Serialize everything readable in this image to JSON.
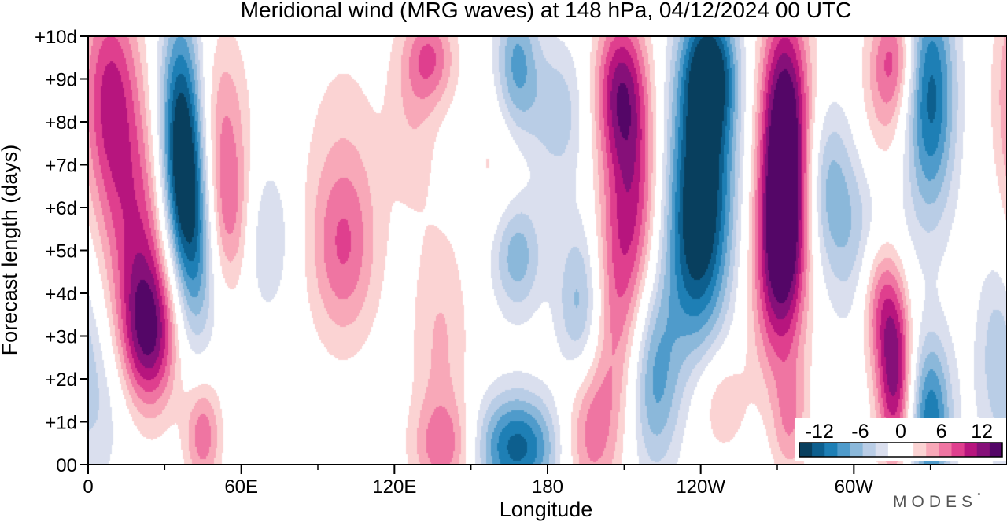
{
  "chart_data": {
    "type": "heatmap",
    "title": "Meridional wind (MRG waves) at  148 hPa,  04/12/2024  00 UTC",
    "xlabel": "Longitude",
    "ylabel": "Forecast length (days)",
    "x_ticks": [
      "0",
      "60E",
      "120E",
      "180",
      "120W",
      "60W"
    ],
    "x_tick_lon": [
      0,
      60,
      120,
      180,
      240,
      300
    ],
    "x_minor_lon": [
      30,
      90,
      150,
      210,
      270,
      330
    ],
    "xlim": [
      0,
      360
    ],
    "y_ticks": [
      "00",
      "+1d",
      "+2d",
      "+3d",
      "+4d",
      "+5d",
      "+6d",
      "+7d",
      "+8d",
      "+9d",
      "+10d"
    ],
    "ylim": [
      0,
      10
    ],
    "colorbar": {
      "tick_labels": [
        "-12",
        "-6",
        "0",
        "6",
        "12"
      ],
      "tick_values": [
        -12,
        -6,
        0,
        6,
        12
      ],
      "range": [
        -15,
        15
      ],
      "colors": [
        "#083f5e",
        "#0d5f8e",
        "#1e7fb5",
        "#4f9bcb",
        "#8bb8da",
        "#b9cde6",
        "#dadfee",
        "#ffffff",
        "#ffffff",
        "#fbd3d3",
        "#f8a8b8",
        "#ef75a2",
        "#df3f8e",
        "#b7157e",
        "#861079",
        "#540667"
      ]
    },
    "features": [
      {
        "lon": 4,
        "day": 1.5,
        "amp": -3.5,
        "wx": 10,
        "wy": 1.5
      },
      {
        "lon": 8,
        "day": 8.8,
        "amp": 8,
        "wx": 8,
        "wy": 1.8
      },
      {
        "lon": 14,
        "day": 6.5,
        "amp": 5,
        "wx": 9,
        "wy": 2.2
      },
      {
        "lon": 22,
        "day": 4.5,
        "amp": 6,
        "wx": 8,
        "wy": 2
      },
      {
        "lon": 24,
        "day": 3.0,
        "amp": 10,
        "wx": 8,
        "wy": 1.2
      },
      {
        "lon": 36,
        "day": 8.5,
        "amp": -10,
        "wx": 6,
        "wy": 1.8
      },
      {
        "lon": 38,
        "day": 6.5,
        "amp": -11,
        "wx": 6,
        "wy": 1.5
      },
      {
        "lon": 42,
        "day": 4.5,
        "amp": -7,
        "wx": 6,
        "wy": 1.5
      },
      {
        "lon": 45,
        "day": 0.7,
        "amp": 7,
        "wx": 5,
        "wy": 0.9
      },
      {
        "lon": 53,
        "day": 7.5,
        "amp": 6,
        "wx": 7,
        "wy": 1.8
      },
      {
        "lon": 56,
        "day": 5.6,
        "amp": 4,
        "wx": 6,
        "wy": 1.2
      },
      {
        "lon": 70,
        "day": 5.3,
        "amp": -4,
        "wx": 7,
        "wy": 1.3
      },
      {
        "lon": 100,
        "day": 5.0,
        "amp": 6,
        "wx": 9,
        "wy": 1.5
      },
      {
        "lon": 100,
        "day": 7.0,
        "amp": 2.5,
        "wx": 12,
        "wy": 2.5
      },
      {
        "lon": 127,
        "day": 8.0,
        "amp": 3,
        "wx": 7,
        "wy": 1.5
      },
      {
        "lon": 134,
        "day": 9.5,
        "amp": 7,
        "wx": 7,
        "wy": 0.8
      },
      {
        "lon": 138,
        "day": 2.8,
        "amp": 4,
        "wx": 8,
        "wy": 2.0
      },
      {
        "lon": 140,
        "day": 0.4,
        "amp": 6,
        "wx": 9,
        "wy": 0.8
      },
      {
        "lon": 160,
        "day": 7.0,
        "amp": 2.5,
        "wx": 8,
        "wy": 1.2
      },
      {
        "lon": 168,
        "day": 4.9,
        "amp": -7,
        "wx": 7,
        "wy": 1.0
      },
      {
        "lon": 168,
        "day": 0.4,
        "amp": -12,
        "wx": 12,
        "wy": 0.9
      },
      {
        "lon": 168,
        "day": 9.3,
        "amp": -8,
        "wx": 6,
        "wy": 1.2
      },
      {
        "lon": 184,
        "day": 8.2,
        "amp": -5,
        "wx": 8,
        "wy": 1.2
      },
      {
        "lon": 194,
        "day": 3.5,
        "amp": -9,
        "wx": 7,
        "wy": 1.6
      },
      {
        "lon": 196,
        "day": 1.0,
        "amp": 8,
        "wx": 8,
        "wy": 1.4
      },
      {
        "lon": 205,
        "day": 4.0,
        "amp": 7,
        "wx": 8,
        "wy": 2.0
      },
      {
        "lon": 214,
        "day": 6.5,
        "amp": 8,
        "wx": 7,
        "wy": 2.0
      },
      {
        "lon": 208,
        "day": 8.8,
        "amp": 10,
        "wx": 7,
        "wy": 1.3
      },
      {
        "lon": 222,
        "day": 2.0,
        "amp": -8,
        "wx": 7,
        "wy": 1.6
      },
      {
        "lon": 241,
        "day": 7.5,
        "amp": -13,
        "wx": 9,
        "wy": 2.2
      },
      {
        "lon": 238,
        "day": 4.8,
        "amp": -9,
        "wx": 9,
        "wy": 1.8
      },
      {
        "lon": 244,
        "day": 9.2,
        "amp": -9,
        "wx": 7,
        "wy": 1.0
      },
      {
        "lon": 248,
        "day": 1.5,
        "amp": 4,
        "wx": 7,
        "wy": 0.9
      },
      {
        "lon": 273,
        "day": 8.3,
        "amp": 14,
        "wx": 7,
        "wy": 1.8
      },
      {
        "lon": 272,
        "day": 5.5,
        "amp": 14,
        "wx": 7,
        "wy": 1.6
      },
      {
        "lon": 270,
        "day": 3.5,
        "amp": 5,
        "wx": 8,
        "wy": 1.5
      },
      {
        "lon": 275,
        "day": 1.0,
        "amp": 5,
        "wx": 5,
        "wy": 1.0
      },
      {
        "lon": 290,
        "day": 6.5,
        "amp": -6,
        "wx": 7,
        "wy": 1.4
      },
      {
        "lon": 306,
        "day": 5.0,
        "amp": -6,
        "wx": 10,
        "wy": 1.5
      },
      {
        "lon": 310,
        "day": 4.0,
        "amp": 9,
        "wx": 6,
        "wy": 1.2
      },
      {
        "lon": 316,
        "day": 2.1,
        "amp": 12,
        "wx": 5,
        "wy": 1.5
      },
      {
        "lon": 312,
        "day": 8.3,
        "amp": 4,
        "wx": 7,
        "wy": 1.6
      },
      {
        "lon": 316,
        "day": 9.5,
        "amp": 6,
        "wx": 6,
        "wy": 0.9
      },
      {
        "lon": 330,
        "day": 8.6,
        "amp": -12,
        "wx": 7,
        "wy": 2.0
      },
      {
        "lon": 330,
        "day": 1.0,
        "amp": -11,
        "wx": 6,
        "wy": 1.4
      },
      {
        "lon": 356,
        "day": 3.0,
        "amp": -3.5,
        "wx": 6,
        "wy": 1.5
      }
    ]
  },
  "brand": {
    "text": "MODES",
    "mark": "°"
  }
}
